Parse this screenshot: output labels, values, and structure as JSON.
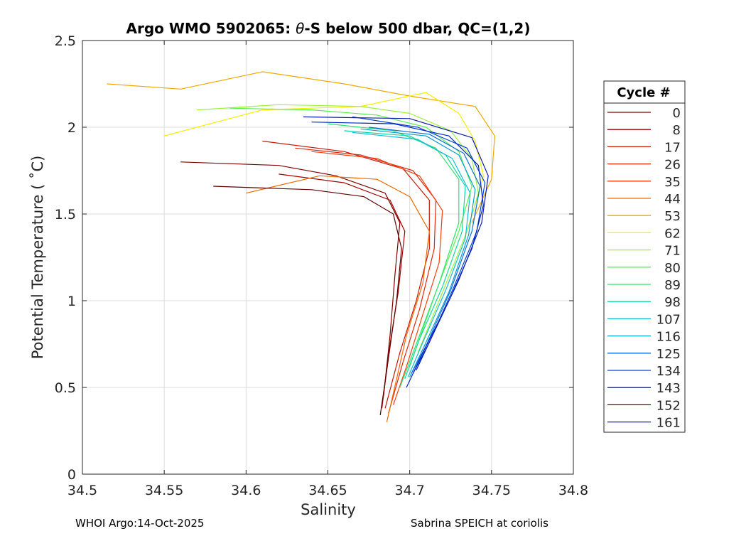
{
  "chart_data": {
    "type": "line",
    "title_prefix": "Argo WMO 5902065: ",
    "title_symbol": "θ",
    "title_suffix": "-S below 500 dbar,  QC=(1,2)",
    "xlabel": "Salinity",
    "ylabel": "Potential Temperature ( ˚C)",
    "xlim": [
      34.5,
      34.8
    ],
    "ylim": [
      0,
      2.5
    ],
    "xticks": [
      34.5,
      34.55,
      34.6,
      34.65,
      34.7,
      34.75,
      34.8
    ],
    "xtick_labels": [
      "34.5",
      "34.55",
      "34.6",
      "34.65",
      "34.7",
      "34.75",
      "34.8"
    ],
    "yticks": [
      0,
      0.5,
      1,
      1.5,
      2,
      2.5
    ],
    "ytick_labels": [
      "0",
      "0.5",
      "1",
      "1.5",
      "2",
      "2.5"
    ],
    "grid": true,
    "legend_title": "Cycle #",
    "legend_position": "right",
    "legend": [
      {
        "label": "0",
        "color": "#800000"
      },
      {
        "label": "8",
        "color": "#a00000"
      },
      {
        "label": "17",
        "color": "#c41a0a"
      },
      {
        "label": "26",
        "color": "#e02810"
      },
      {
        "label": "35",
        "color": "#f04010"
      },
      {
        "label": "44",
        "color": "#f06a00"
      },
      {
        "label": "53",
        "color": "#f0a800"
      },
      {
        "label": "62",
        "color": "#f5f000"
      },
      {
        "label": "71",
        "color": "#9ef03c"
      },
      {
        "label": "80",
        "color": "#5aef50"
      },
      {
        "label": "89",
        "color": "#2ee36e"
      },
      {
        "label": "98",
        "color": "#12d9a0"
      },
      {
        "label": "107",
        "color": "#14bcd8"
      },
      {
        "label": "116",
        "color": "#0c9ad6"
      },
      {
        "label": "125",
        "color": "#0a6ed6"
      },
      {
        "label": "134",
        "color": "#0a44cc"
      },
      {
        "label": "143",
        "color": "#0a1ca6"
      },
      {
        "label": "152",
        "color": "#600000"
      },
      {
        "label": "161",
        "color": "#0024c8"
      }
    ],
    "series": [
      {
        "name": "0",
        "color": "#800000",
        "points": [
          [
            34.56,
            1.8
          ],
          [
            34.62,
            1.78
          ],
          [
            34.655,
            1.72
          ],
          [
            34.685,
            1.62
          ],
          [
            34.694,
            1.45
          ],
          [
            34.691,
            1.15
          ],
          [
            34.688,
            0.8
          ],
          [
            34.684,
            0.45
          ]
        ]
      },
      {
        "name": "8",
        "color": "#a00000",
        "points": [
          [
            34.62,
            1.73
          ],
          [
            34.66,
            1.68
          ],
          [
            34.688,
            1.58
          ],
          [
            34.697,
            1.4
          ],
          [
            34.693,
            1.05
          ],
          [
            34.688,
            0.75
          ],
          [
            34.683,
            0.38
          ]
        ]
      },
      {
        "name": "17",
        "color": "#c41a0a",
        "points": [
          [
            34.61,
            1.92
          ],
          [
            34.66,
            1.86
          ],
          [
            34.696,
            1.76
          ],
          [
            34.712,
            1.58
          ],
          [
            34.712,
            1.3
          ],
          [
            34.704,
            1.0
          ],
          [
            34.694,
            0.7
          ],
          [
            34.685,
            0.38
          ]
        ]
      },
      {
        "name": "26",
        "color": "#e02810",
        "points": [
          [
            34.63,
            1.88
          ],
          [
            34.67,
            1.84
          ],
          [
            34.702,
            1.75
          ],
          [
            34.716,
            1.58
          ],
          [
            34.715,
            1.3
          ],
          [
            34.706,
            0.95
          ],
          [
            34.696,
            0.65
          ],
          [
            34.687,
            0.35
          ]
        ]
      },
      {
        "name": "35",
        "color": "#f04010",
        "points": [
          [
            34.64,
            1.86
          ],
          [
            34.68,
            1.82
          ],
          [
            34.706,
            1.72
          ],
          [
            34.72,
            1.52
          ],
          [
            34.718,
            1.22
          ],
          [
            34.708,
            0.92
          ],
          [
            34.698,
            0.62
          ],
          [
            34.69,
            0.4
          ]
        ]
      },
      {
        "name": "44",
        "color": "#f06a00",
        "points": [
          [
            34.6,
            1.62
          ],
          [
            34.645,
            1.72
          ],
          [
            34.68,
            1.7
          ],
          [
            34.7,
            1.6
          ],
          [
            34.712,
            1.4
          ],
          [
            34.708,
            1.1
          ],
          [
            34.698,
            0.8
          ],
          [
            34.686,
            0.3
          ]
        ]
      },
      {
        "name": "53",
        "color": "#f0a800",
        "points": [
          [
            34.515,
            2.25
          ],
          [
            34.56,
            2.22
          ],
          [
            34.61,
            2.32
          ],
          [
            34.66,
            2.25
          ],
          [
            34.7,
            2.18
          ],
          [
            34.74,
            2.12
          ],
          [
            34.752,
            1.95
          ],
          [
            34.75,
            1.7
          ],
          [
            34.738,
            1.45
          ]
        ]
      },
      {
        "name": "62",
        "color": "#f5f000",
        "points": [
          [
            34.55,
            1.95
          ],
          [
            34.61,
            2.1
          ],
          [
            34.67,
            2.12
          ],
          [
            34.71,
            2.2
          ],
          [
            34.73,
            2.08
          ],
          [
            34.74,
            1.92
          ],
          [
            34.745,
            1.72
          ],
          [
            34.74,
            1.55
          ]
        ]
      },
      {
        "name": "71",
        "color": "#9ef03c",
        "points": [
          [
            34.57,
            2.1
          ],
          [
            34.62,
            2.13
          ],
          [
            34.67,
            2.12
          ],
          [
            34.7,
            2.08
          ],
          [
            34.725,
            1.98
          ],
          [
            34.738,
            1.82
          ],
          [
            34.742,
            1.62
          ],
          [
            34.735,
            1.4
          ],
          [
            34.718,
            1.0
          ],
          [
            34.705,
            0.7
          ]
        ]
      },
      {
        "name": "80",
        "color": "#5aef50",
        "points": [
          [
            34.59,
            2.11
          ],
          [
            34.64,
            2.1
          ],
          [
            34.68,
            2.07
          ],
          [
            34.71,
            2.0
          ],
          [
            34.73,
            1.86
          ],
          [
            34.738,
            1.66
          ],
          [
            34.73,
            1.4
          ],
          [
            34.716,
            1.05
          ],
          [
            34.7,
            0.62
          ]
        ]
      },
      {
        "name": "89",
        "color": "#2ee36e",
        "points": [
          [
            34.65,
            2.02
          ],
          [
            34.69,
            1.98
          ],
          [
            34.716,
            1.88
          ],
          [
            34.73,
            1.7
          ],
          [
            34.73,
            1.45
          ],
          [
            34.718,
            1.1
          ],
          [
            34.704,
            0.75
          ],
          [
            34.694,
            0.5
          ]
        ]
      },
      {
        "name": "98",
        "color": "#12d9a0",
        "points": [
          [
            34.66,
            1.98
          ],
          [
            34.7,
            1.95
          ],
          [
            34.722,
            1.84
          ],
          [
            34.734,
            1.66
          ],
          [
            34.732,
            1.4
          ],
          [
            34.72,
            1.08
          ],
          [
            34.706,
            0.78
          ],
          [
            34.697,
            0.55
          ]
        ]
      },
      {
        "name": "107",
        "color": "#14bcd8",
        "points": [
          [
            34.665,
            1.97
          ],
          [
            34.705,
            1.93
          ],
          [
            34.726,
            1.82
          ],
          [
            34.737,
            1.62
          ],
          [
            34.734,
            1.36
          ],
          [
            34.722,
            1.06
          ],
          [
            34.708,
            0.76
          ],
          [
            34.699,
            0.56
          ]
        ]
      },
      {
        "name": "116",
        "color": "#0c9ad6",
        "points": [
          [
            34.67,
            1.99
          ],
          [
            34.71,
            1.95
          ],
          [
            34.73,
            1.84
          ],
          [
            34.74,
            1.64
          ],
          [
            34.736,
            1.38
          ],
          [
            34.724,
            1.05
          ],
          [
            34.709,
            0.74
          ],
          [
            34.7,
            0.56
          ]
        ]
      },
      {
        "name": "125",
        "color": "#0a6ed6",
        "points": [
          [
            34.675,
            2.0
          ],
          [
            34.712,
            1.96
          ],
          [
            34.733,
            1.85
          ],
          [
            34.743,
            1.66
          ],
          [
            34.738,
            1.4
          ],
          [
            34.725,
            1.06
          ],
          [
            34.71,
            0.74
          ],
          [
            34.701,
            0.58
          ]
        ]
      },
      {
        "name": "134",
        "color": "#0a44cc",
        "points": [
          [
            34.665,
            2.06
          ],
          [
            34.705,
            2.0
          ],
          [
            34.735,
            1.88
          ],
          [
            34.746,
            1.68
          ],
          [
            34.741,
            1.4
          ],
          [
            34.727,
            1.08
          ],
          [
            34.712,
            0.76
          ],
          [
            34.702,
            0.58
          ]
        ]
      },
      {
        "name": "143",
        "color": "#0a1ca6",
        "points": [
          [
            34.635,
            2.06
          ],
          [
            34.7,
            2.05
          ],
          [
            34.738,
            1.94
          ],
          [
            34.748,
            1.72
          ],
          [
            34.744,
            1.45
          ],
          [
            34.73,
            1.12
          ],
          [
            34.714,
            0.8
          ],
          [
            34.704,
            0.6
          ]
        ]
      },
      {
        "name": "152",
        "color": "#600000",
        "points": [
          [
            34.58,
            1.66
          ],
          [
            34.64,
            1.64
          ],
          [
            34.672,
            1.6
          ],
          [
            34.69,
            1.5
          ],
          [
            34.695,
            1.3
          ],
          [
            34.692,
            1.0
          ],
          [
            34.686,
            0.6
          ],
          [
            34.682,
            0.34
          ]
        ]
      },
      {
        "name": "161",
        "color": "#0024c8",
        "points": [
          [
            34.64,
            2.03
          ],
          [
            34.69,
            2.02
          ],
          [
            34.724,
            1.95
          ],
          [
            34.742,
            1.78
          ],
          [
            34.745,
            1.55
          ],
          [
            34.738,
            1.3
          ],
          [
            34.724,
            1.0
          ],
          [
            34.708,
            0.7
          ],
          [
            34.698,
            0.5
          ]
        ]
      }
    ]
  },
  "footer": {
    "left": "WHOI Argo:14-Oct-2025",
    "right": "Sabrina SPEICH at coriolis"
  }
}
